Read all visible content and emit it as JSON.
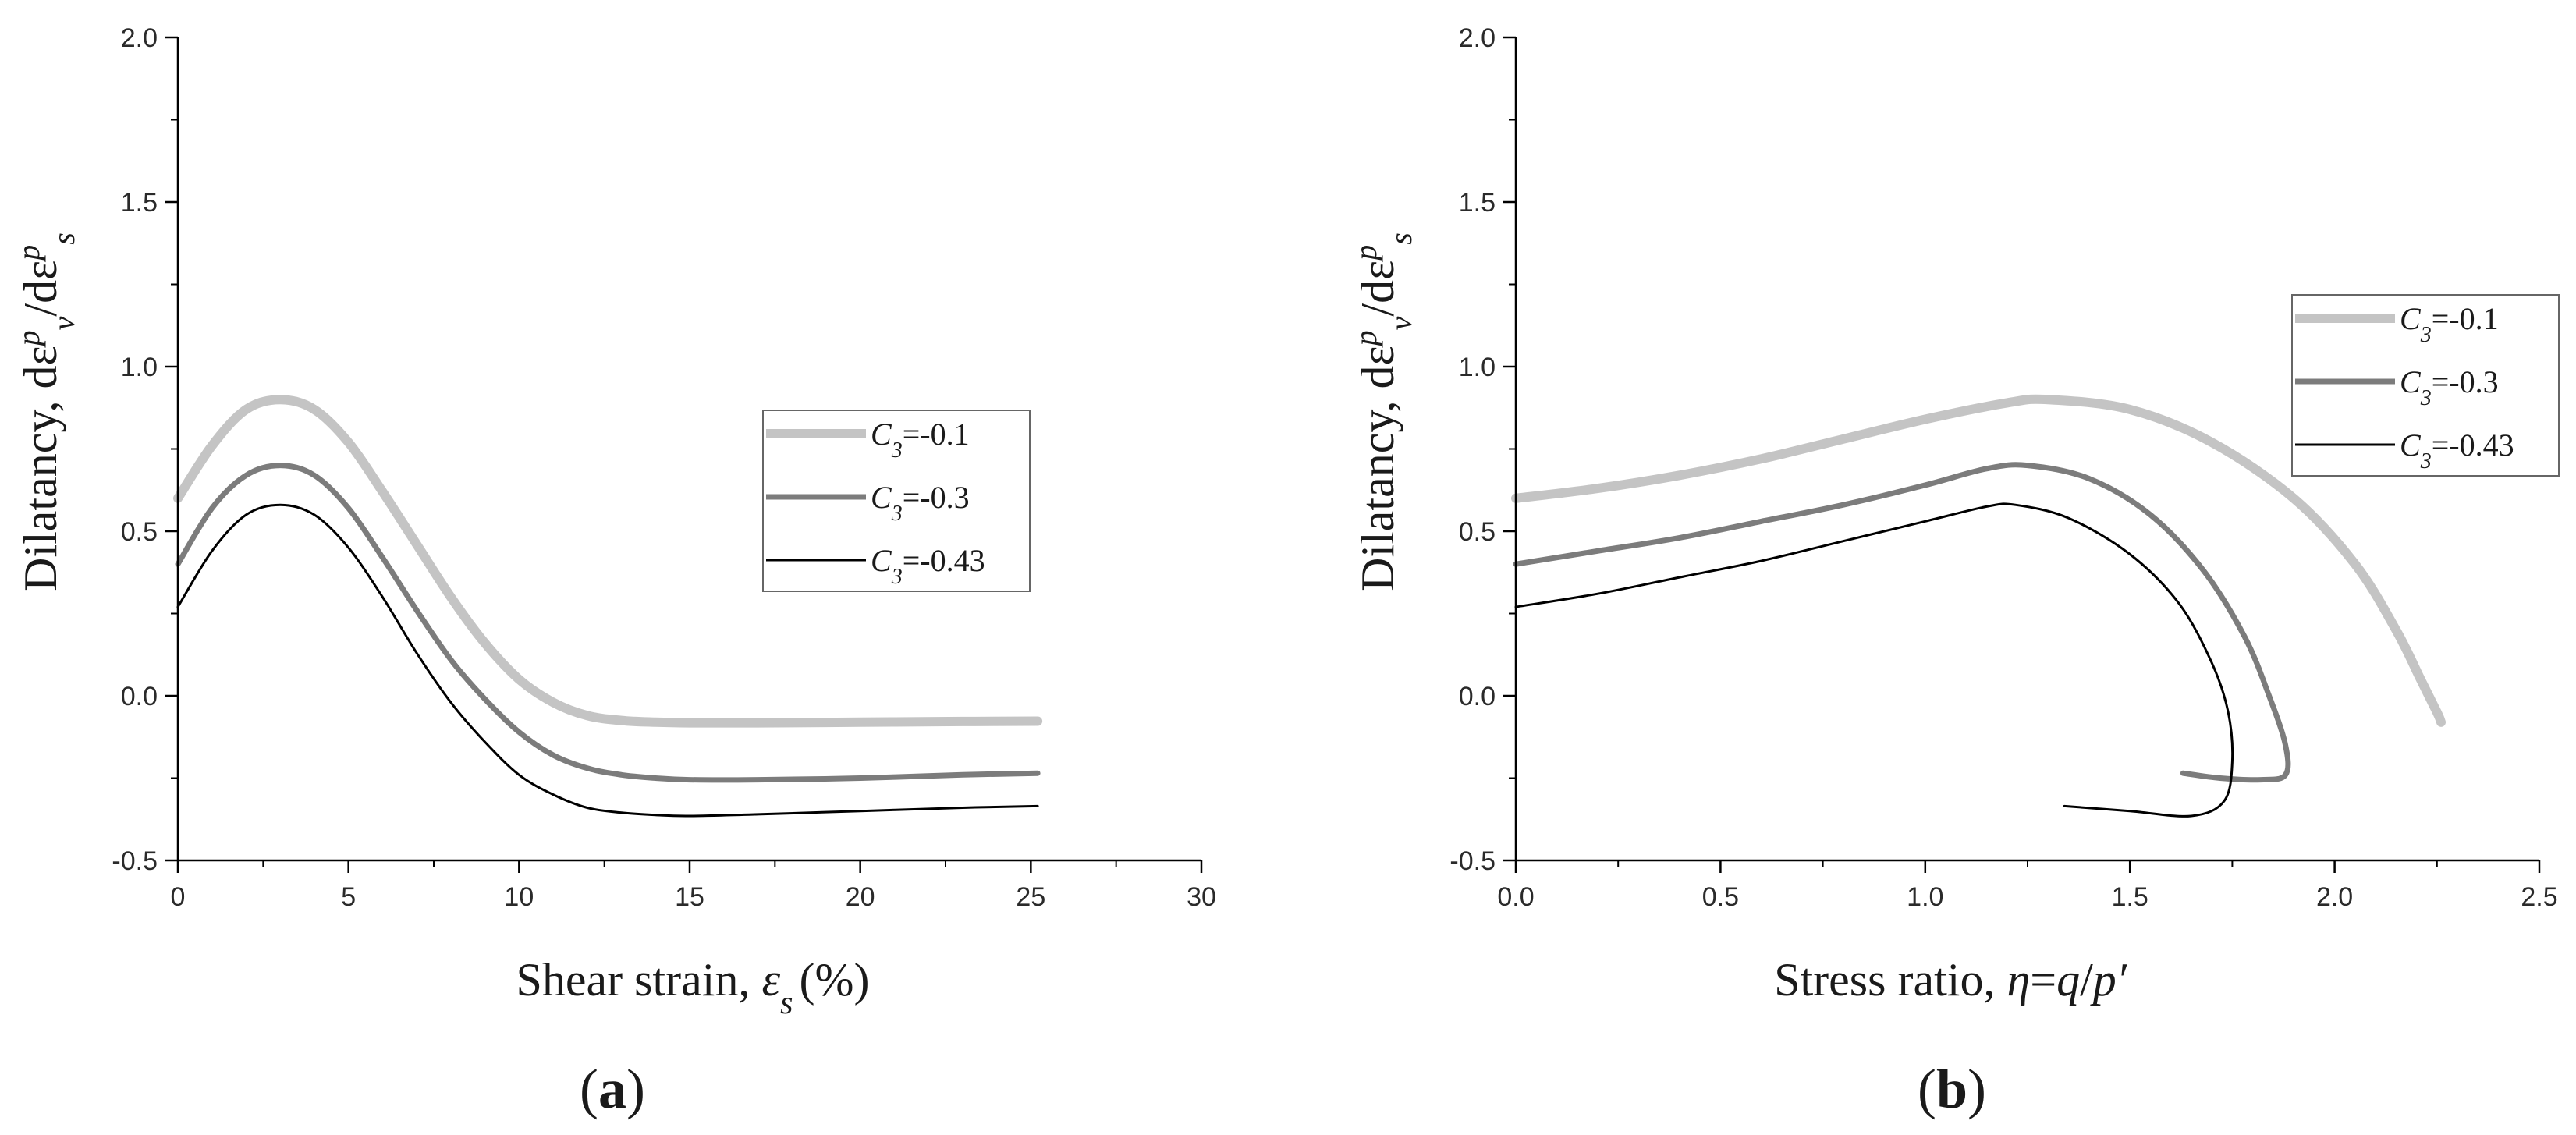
{
  "chart_data": [
    {
      "type": "line",
      "panel_label": "a",
      "xlabel": {
        "text": "Shear strain, ",
        "symbol": "ε",
        "sub": "s",
        "unit": "(%)"
      },
      "ylabel": {
        "text": "Dilatancy, dε",
        "sup1": "p",
        "sub1": "v",
        "mid": "/dε",
        "sup2": "p",
        "sub2": "s"
      },
      "xlim": [
        0,
        30
      ],
      "ylim": [
        -0.5,
        2.0
      ],
      "xticks": [
        0,
        5,
        10,
        15,
        20,
        25,
        30
      ],
      "xtick_labels": [
        "0",
        "5",
        "10",
        "15",
        "20",
        "25",
        "30"
      ],
      "yticks": [
        -0.5,
        0.0,
        0.5,
        1.0,
        1.5,
        2.0
      ],
      "ytick_labels": [
        "-0.5",
        "0.0",
        "0.5",
        "1.0",
        "1.5",
        "2.0"
      ],
      "grid": false,
      "legend": {
        "placement": "center-right"
      },
      "series": [
        {
          "name": "=-0.1",
          "legend_var": "C",
          "legend_sub": "3",
          "color": "#c4c4c4",
          "stroke": "thick",
          "x": [
            0,
            1,
            2,
            3,
            4,
            5,
            6,
            7,
            8,
            9,
            10,
            11,
            12,
            13,
            14,
            15,
            17,
            20,
            23,
            25.2
          ],
          "y": [
            0.6,
            0.76,
            0.87,
            0.9,
            0.87,
            0.77,
            0.62,
            0.46,
            0.3,
            0.16,
            0.05,
            -0.02,
            -0.06,
            -0.075,
            -0.08,
            -0.082,
            -0.082,
            -0.08,
            -0.078,
            -0.077
          ]
        },
        {
          "name": "=-0.3",
          "legend_var": "C",
          "legend_sub": "3",
          "color": "#7c7c7c",
          "stroke": "medium",
          "x": [
            0,
            1,
            2,
            3,
            4,
            5,
            6,
            7,
            8,
            9,
            10,
            11,
            12,
            13,
            14,
            15,
            17,
            20,
            23,
            25.2
          ],
          "y": [
            0.4,
            0.57,
            0.67,
            0.7,
            0.67,
            0.57,
            0.42,
            0.26,
            0.11,
            -0.01,
            -0.11,
            -0.18,
            -0.22,
            -0.24,
            -0.25,
            -0.255,
            -0.255,
            -0.25,
            -0.24,
            -0.235
          ]
        },
        {
          "name": "=-0.43",
          "legend_var": "C",
          "legend_sub": "3",
          "color": "#000000",
          "stroke": "thin",
          "x": [
            0,
            1,
            2,
            3,
            4,
            5,
            6,
            7,
            8,
            9,
            10,
            11,
            12,
            13,
            14,
            15,
            17,
            20,
            23,
            25.2
          ],
          "y": [
            0.27,
            0.44,
            0.55,
            0.58,
            0.55,
            0.45,
            0.3,
            0.13,
            -0.02,
            -0.14,
            -0.24,
            -0.3,
            -0.34,
            -0.355,
            -0.362,
            -0.365,
            -0.36,
            -0.35,
            -0.34,
            -0.335
          ]
        }
      ]
    },
    {
      "type": "line",
      "panel_label": "b",
      "xlabel": {
        "text": "Stress ratio, ",
        "symbol": "η",
        "mid": "=",
        "var1": "q",
        "slash": "/",
        "var2": "p′"
      },
      "ylabel": {
        "text": "Dilatancy, dε",
        "sup1": "p",
        "sub1": "v",
        "mid": "/dε",
        "sup2": "p",
        "sub2": "s"
      },
      "xlim": [
        0.0,
        2.5
      ],
      "ylim": [
        -0.5,
        2.0
      ],
      "xticks": [
        0.0,
        0.5,
        1.0,
        1.5,
        2.0,
        2.5
      ],
      "xtick_labels": [
        "0.0",
        "0.5",
        "1.0",
        "1.5",
        "2.0",
        "2.5"
      ],
      "yticks": [
        -0.5,
        0.0,
        0.5,
        1.0,
        1.5,
        2.0
      ],
      "ytick_labels": [
        "-0.5",
        "0.0",
        "0.5",
        "1.0",
        "1.5",
        "2.0"
      ],
      "grid": false,
      "legend": {
        "placement": "top-right"
      },
      "series": [
        {
          "name": "=-0.1",
          "legend_var": "C",
          "legend_sub": "3",
          "color": "#c4c4c4",
          "stroke": "thick",
          "x": [
            0.0,
            0.2,
            0.4,
            0.6,
            0.8,
            1.0,
            1.2,
            1.3,
            1.5,
            1.7,
            1.9,
            2.05,
            2.15,
            2.21,
            2.25,
            2.26
          ],
          "y": [
            0.6,
            0.63,
            0.67,
            0.72,
            0.78,
            0.84,
            0.89,
            0.9,
            0.87,
            0.77,
            0.6,
            0.4,
            0.2,
            0.05,
            -0.05,
            -0.08
          ]
        },
        {
          "name": "=-0.3",
          "legend_var": "C",
          "legend_sub": "3",
          "color": "#7c7c7c",
          "stroke": "medium",
          "x": [
            0.0,
            0.2,
            0.4,
            0.6,
            0.8,
            1.0,
            1.15,
            1.25,
            1.4,
            1.55,
            1.68,
            1.78,
            1.84,
            1.88,
            1.88,
            1.82,
            1.72,
            1.63
          ],
          "y": [
            0.4,
            0.44,
            0.48,
            0.53,
            0.58,
            0.64,
            0.69,
            0.7,
            0.66,
            0.55,
            0.38,
            0.18,
            0.0,
            -0.15,
            -0.24,
            -0.255,
            -0.25,
            -0.235
          ]
        },
        {
          "name": "=-0.43",
          "legend_var": "C",
          "legend_sub": "3",
          "color": "#000000",
          "stroke": "thin",
          "x": [
            0.0,
            0.2,
            0.4,
            0.6,
            0.8,
            1.0,
            1.15,
            1.22,
            1.35,
            1.5,
            1.62,
            1.7,
            1.74,
            1.75,
            1.73,
            1.65,
            1.5,
            1.34
          ],
          "y": [
            0.27,
            0.31,
            0.36,
            0.41,
            0.47,
            0.53,
            0.575,
            0.58,
            0.54,
            0.43,
            0.28,
            0.1,
            -0.05,
            -0.2,
            -0.32,
            -0.365,
            -0.35,
            -0.335
          ]
        }
      ]
    }
  ]
}
